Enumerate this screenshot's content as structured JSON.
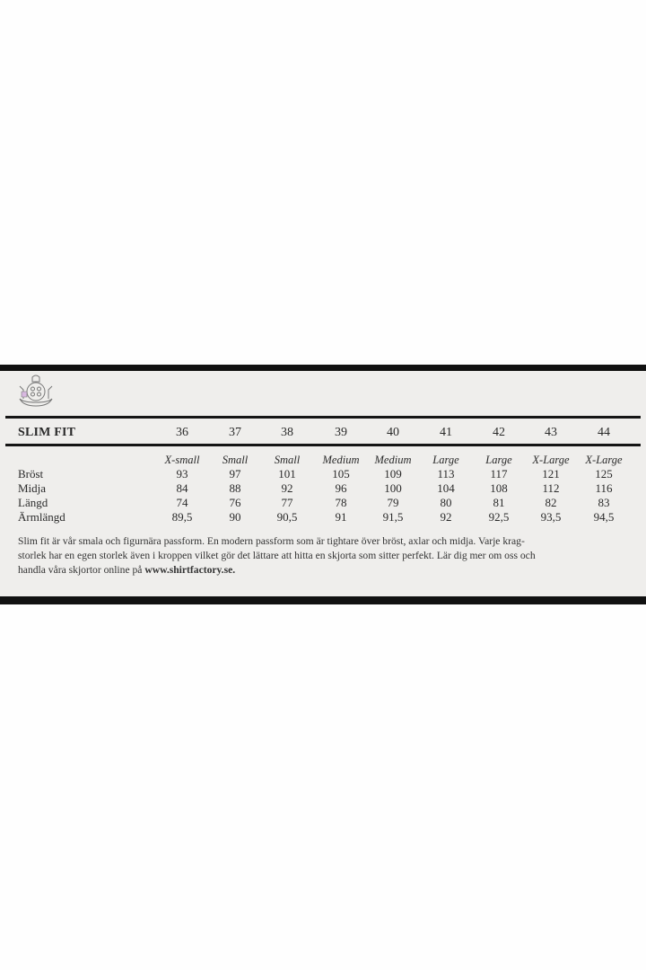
{
  "title": "SLIM FIT",
  "sizes": [
    "36",
    "37",
    "38",
    "39",
    "40",
    "41",
    "42",
    "43",
    "44"
  ],
  "size_names": [
    "X-small",
    "Small",
    "Small",
    "Medium",
    "Medium",
    "Large",
    "Large",
    "X-Large",
    "X-Large"
  ],
  "rows": [
    {
      "label": "Bröst",
      "values": [
        "93",
        "97",
        "101",
        "105",
        "109",
        "113",
        "117",
        "121",
        "125"
      ]
    },
    {
      "label": "Midja",
      "values": [
        "84",
        "88",
        "92",
        "96",
        "100",
        "104",
        "108",
        "112",
        "116"
      ]
    },
    {
      "label": "Längd",
      "values": [
        "74",
        "76",
        "77",
        "78",
        "79",
        "80",
        "81",
        "82",
        "83"
      ]
    },
    {
      "label": "Ärmlängd",
      "values": [
        "89,5",
        "90",
        "90,5",
        "91",
        "91,5",
        "92",
        "92,5",
        "93,5",
        "94,5"
      ]
    }
  ],
  "description": {
    "line1": "Slim fit är vår smala och figurnära passform. En modern passform som är tightare över bröst, axlar och midja. Varje krag-",
    "line2": "storlek har en egen storlek även i kroppen vilket gör det lättare att hitta en skjorta som sitter perfekt. Lär dig mer om oss och",
    "line3_prefix": "handla våra skjortor online på ",
    "link": "www.shirtfactory.se."
  },
  "logo": "shirt-factory-crest-icon"
}
